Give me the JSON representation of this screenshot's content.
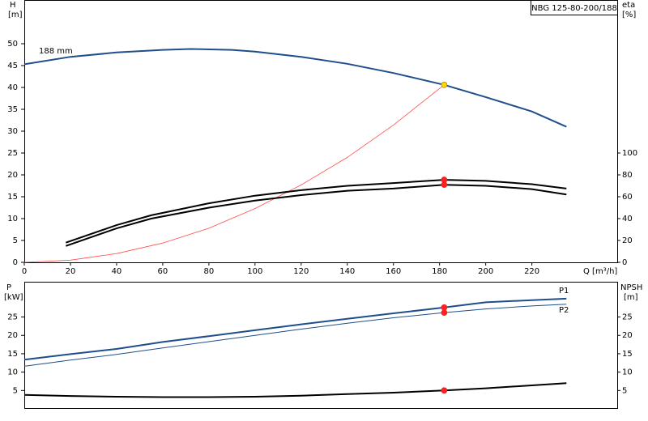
{
  "chart_data": [
    {
      "type": "line",
      "title": "NBG 125-80-200/188",
      "ylabel": "H",
      "ylabel_unit": "[m]",
      "y2label": "eta",
      "y2label_unit": "[%]",
      "xlabel": "Q [m³/h]",
      "xlim": [
        0,
        257
      ],
      "xticks": [
        0,
        20,
        40,
        60,
        80,
        100,
        120,
        140,
        160,
        180,
        200,
        220
      ],
      "ylim": [
        0,
        60
      ],
      "yticks": [
        0,
        5,
        10,
        15,
        20,
        25,
        30,
        35,
        40,
        45,
        50
      ],
      "y2lim": [
        0,
        240
      ],
      "y2ticks": [
        0,
        20,
        40,
        60,
        80,
        100
      ],
      "series": [
        {
          "name": "188 mm",
          "color": "#1f4e8c",
          "width": 2,
          "x": [
            0,
            20,
            40,
            60,
            72,
            90,
            100,
            120,
            140,
            160,
            182,
            200,
            220,
            235
          ],
          "values": [
            45.3,
            47,
            48,
            48.6,
            48.8,
            48.6,
            48.2,
            47,
            45.4,
            43.3,
            40.6,
            37.8,
            34.5,
            31
          ]
        },
        {
          "color": "#ff4d4d",
          "width": 0.8,
          "x": [
            0,
            20,
            40,
            60,
            80,
            100,
            120,
            140,
            160,
            182
          ],
          "values": [
            0,
            0.5,
            2,
            4.4,
            7.8,
            12.3,
            17.7,
            24,
            31.4,
            40.6
          ]
        },
        {
          "color": "#000000",
          "width": 2,
          "axis": "y2",
          "x": [
            18,
            40,
            55,
            80,
            100,
            120,
            140,
            160,
            182,
            200,
            220,
            235
          ],
          "values": [
            18,
            34,
            43,
            54,
            61,
            66,
            70,
            72.5,
            75.5,
            74.5,
            71.5,
            67.5
          ]
        },
        {
          "color": "#000000",
          "width": 2,
          "axis": "y2",
          "x": [
            18,
            40,
            55,
            80,
            100,
            120,
            140,
            160,
            182,
            200,
            220,
            235
          ],
          "values": [
            15,
            31,
            40,
            50,
            56.5,
            61.5,
            65.5,
            67.5,
            71,
            70,
            67,
            62
          ]
        }
      ],
      "markers": [
        {
          "x": 182,
          "y": 40.6,
          "color": "#ffd700"
        },
        {
          "x": 182,
          "y": 75.5,
          "color": "#ff2020",
          "axis": "y2"
        },
        {
          "x": 182,
          "y": 71,
          "color": "#ff2020",
          "axis": "y2"
        }
      ]
    },
    {
      "type": "line",
      "ylabel": "P",
      "ylabel_unit": "[kW]",
      "y2label": "NPSH",
      "y2label_unit": "[m]",
      "xlim": [
        0,
        257
      ],
      "ylim": [
        0,
        34.6
      ],
      "yticks": [
        5,
        10,
        15,
        20,
        25
      ],
      "y2lim": [
        0,
        34.6
      ],
      "y2ticks": [
        5,
        10,
        15,
        20,
        25
      ],
      "series": [
        {
          "name": "P1",
          "color": "#1f4e8c",
          "width": 2,
          "x": [
            0,
            20,
            40,
            60,
            80,
            100,
            120,
            140,
            160,
            182,
            200,
            220,
            235
          ],
          "values": [
            13.4,
            14.9,
            16.3,
            18.2,
            19.8,
            21.4,
            23,
            24.5,
            26,
            27.6,
            29,
            29.6,
            30
          ]
        },
        {
          "name": "P2",
          "color": "#1f4e8c",
          "width": 1,
          "x": [
            0,
            20,
            40,
            60,
            80,
            100,
            120,
            140,
            160,
            182,
            200,
            220,
            235
          ],
          "values": [
            11.6,
            13.3,
            14.8,
            16.6,
            18.3,
            20,
            21.7,
            23.3,
            24.8,
            26.2,
            27.2,
            28,
            28.5
          ]
        },
        {
          "color": "#000000",
          "width": 2,
          "axis": "y2",
          "x": [
            0,
            20,
            40,
            60,
            80,
            100,
            120,
            140,
            160,
            182,
            200,
            220,
            235
          ],
          "values": [
            3.8,
            3.5,
            3.3,
            3.2,
            3.2,
            3.3,
            3.6,
            4,
            4.4,
            5,
            5.6,
            6.4,
            7
          ]
        }
      ],
      "markers": [
        {
          "x": 182,
          "y": 27.6,
          "color": "#ff2020"
        },
        {
          "x": 182,
          "y": 26.2,
          "color": "#ff2020"
        },
        {
          "x": 182,
          "y": 5,
          "color": "#ff2020",
          "axis": "y2"
        }
      ]
    }
  ]
}
